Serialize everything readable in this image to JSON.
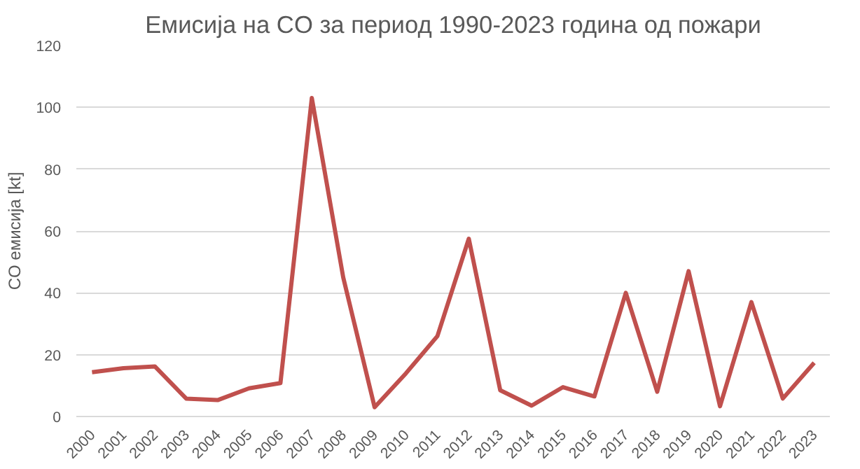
{
  "chart_data": {
    "type": "line",
    "title": "Емисија на CO за период 1990-2023 година од пожари",
    "ylabel": "CO емисија [kt]",
    "categories": [
      "2000",
      "2001",
      "2002",
      "2003",
      "2004",
      "2005",
      "2006",
      "2007",
      "2008",
      "2009",
      "2010",
      "2011",
      "2012",
      "2013",
      "2014",
      "2015",
      "2016",
      "2017",
      "2018",
      "2019",
      "2020",
      "2021",
      "2022",
      "2023"
    ],
    "series": [
      {
        "color": "#c0504d",
        "values": [
          14.3,
          15.6,
          16.2,
          5.8,
          5.3,
          9.1,
          10.8,
          103,
          45,
          3,
          14,
          26,
          57.5,
          8.5,
          3.5,
          9.5,
          6.5,
          40,
          8,
          47,
          3.3,
          37,
          5.8,
          17.4
        ]
      }
    ],
    "ylim": [
      0,
      120
    ],
    "yticks": [
      0,
      20,
      40,
      60,
      80,
      100,
      120
    ],
    "grid": "y",
    "marker": "none",
    "line_style": "solid"
  }
}
